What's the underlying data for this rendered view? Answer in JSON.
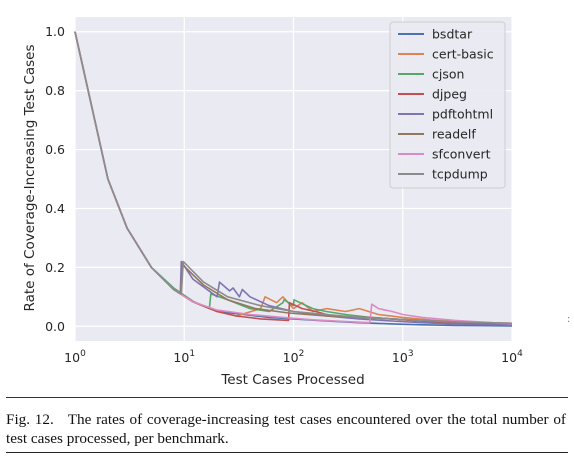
{
  "chart_data": {
    "type": "line",
    "title": "",
    "xlabel": "Test Cases Processed",
    "ylabel": "Rate of Coverage-Increasing Test Cases",
    "xscale": "log",
    "xlim": [
      1,
      10000
    ],
    "ylim": [
      -0.05,
      1.05
    ],
    "x_ticks": [
      {
        "value": 1,
        "base": "10",
        "exp": "0"
      },
      {
        "value": 10,
        "base": "10",
        "exp": "1"
      },
      {
        "value": 100,
        "base": "10",
        "exp": "2"
      },
      {
        "value": 1000,
        "base": "10",
        "exp": "3"
      },
      {
        "value": 10000,
        "base": "10",
        "exp": "4"
      }
    ],
    "y_ticks": [
      "0.0",
      "0.2",
      "0.4",
      "0.6",
      "0.8",
      "1.0"
    ],
    "grid": true,
    "legend_position": "top-right",
    "series": [
      {
        "name": "bsdtar",
        "color": "#4c72b0",
        "x": [
          1,
          2,
          3,
          5,
          8,
          12,
          20,
          35,
          60,
          100,
          200,
          400,
          800,
          1500,
          3000,
          6000,
          10000
        ],
        "y": [
          1.0,
          0.5,
          0.333,
          0.2,
          0.125,
          0.083,
          0.05,
          0.04,
          0.03,
          0.025,
          0.018,
          0.012,
          0.008,
          0.005,
          0.003,
          0.002,
          0.001
        ]
      },
      {
        "name": "cert-basic",
        "color": "#dd8452",
        "x": [
          1,
          2,
          3,
          5,
          8,
          12,
          20,
          30,
          50,
          55,
          70,
          80,
          100,
          120,
          150,
          200,
          300,
          400,
          600,
          1000,
          2000,
          4000,
          10000
        ],
        "y": [
          1.0,
          0.5,
          0.333,
          0.2,
          0.125,
          0.083,
          0.05,
          0.035,
          0.06,
          0.1,
          0.08,
          0.1,
          0.06,
          0.08,
          0.05,
          0.06,
          0.05,
          0.06,
          0.04,
          0.03,
          0.02,
          0.015,
          0.008
        ]
      },
      {
        "name": "cjson",
        "color": "#55a868",
        "x": [
          1,
          2,
          3,
          5,
          8,
          12,
          17,
          17.5,
          25,
          40,
          60,
          80,
          82,
          100,
          101,
          150,
          200,
          300,
          500,
          800,
          1500,
          3000,
          10000
        ],
        "y": [
          1.0,
          0.5,
          0.333,
          0.2,
          0.13,
          0.085,
          0.06,
          0.11,
          0.09,
          0.06,
          0.05,
          0.08,
          0.09,
          0.07,
          0.09,
          0.06,
          0.05,
          0.04,
          0.03,
          0.025,
          0.02,
          0.015,
          0.008
        ]
      },
      {
        "name": "djpeg",
        "color": "#c44e52",
        "x": [
          1,
          2,
          3,
          5,
          8,
          12,
          20,
          30,
          50,
          90,
          92,
          120,
          160,
          200,
          300,
          500,
          800,
          1200,
          2000,
          4000,
          10000
        ],
        "y": [
          1.0,
          0.5,
          0.333,
          0.2,
          0.125,
          0.083,
          0.05,
          0.035,
          0.025,
          0.02,
          0.08,
          0.06,
          0.05,
          0.04,
          0.03,
          0.03,
          0.025,
          0.02,
          0.015,
          0.01,
          0.006
        ]
      },
      {
        "name": "pdftohtml",
        "color": "#8172b2",
        "x": [
          1,
          2,
          3,
          5,
          8,
          9.2,
          9.4,
          12,
          20,
          21,
          26,
          28,
          32,
          34,
          40,
          60,
          100,
          200,
          400,
          800,
          1500,
          3000,
          10000
        ],
        "y": [
          1.0,
          0.5,
          0.333,
          0.2,
          0.125,
          0.11,
          0.22,
          0.16,
          0.1,
          0.15,
          0.12,
          0.13,
          0.1,
          0.125,
          0.1,
          0.07,
          0.05,
          0.035,
          0.025,
          0.018,
          0.012,
          0.008,
          0.004
        ]
      },
      {
        "name": "readelf",
        "color": "#937860",
        "x": [
          1,
          2,
          3,
          5,
          8,
          9.3,
          9.6,
          15,
          25,
          45,
          90,
          200,
          400,
          800,
          1500,
          3000,
          10000
        ],
        "y": [
          1.0,
          0.5,
          0.333,
          0.2,
          0.125,
          0.11,
          0.21,
          0.14,
          0.09,
          0.06,
          0.045,
          0.035,
          0.03,
          0.025,
          0.02,
          0.015,
          0.01
        ]
      },
      {
        "name": "sfconvert",
        "color": "#da8bc3",
        "x": [
          1,
          2,
          3,
          5,
          8,
          12,
          20,
          40,
          80,
          150,
          300,
          500,
          520,
          600,
          800,
          1000,
          1500,
          3000,
          10000
        ],
        "y": [
          1.0,
          0.5,
          0.333,
          0.2,
          0.125,
          0.083,
          0.055,
          0.04,
          0.03,
          0.022,
          0.016,
          0.012,
          0.075,
          0.06,
          0.05,
          0.04,
          0.03,
          0.02,
          0.008
        ]
      },
      {
        "name": "tcpdump",
        "color": "#8c8c8c",
        "x": [
          1,
          2,
          3,
          5,
          8,
          9.4,
          9.8,
          15,
          25,
          50,
          100,
          200,
          400,
          800,
          1500,
          3000,
          10000
        ],
        "y": [
          1.0,
          0.5,
          0.333,
          0.2,
          0.125,
          0.11,
          0.22,
          0.15,
          0.1,
          0.07,
          0.05,
          0.04,
          0.03,
          0.025,
          0.02,
          0.015,
          0.01
        ]
      }
    ]
  },
  "caption": {
    "label": "Fig. 12.",
    "text": "The rates of coverage-increasing test cases encountered over the total number of test cases processed, per benchmark."
  }
}
